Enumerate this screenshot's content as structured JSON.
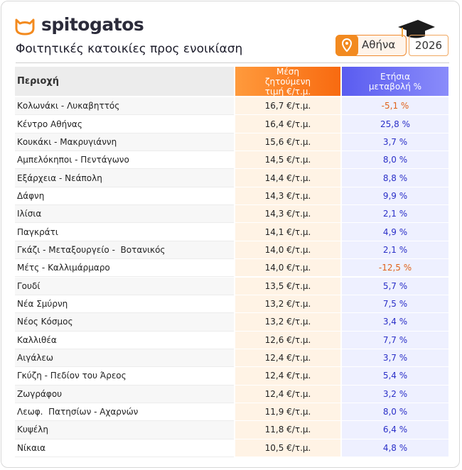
{
  "header": {
    "brand": "spitogatos",
    "title": "Φοιτητικές κατοικίες προς ενοικίαση",
    "location": "Αθήνα",
    "year": "2026"
  },
  "table": {
    "columns": [
      "Περιοχή",
      "Μέση ζητούμενη τιμή €/τ.μ.",
      "Ετήσια μεταβολή %"
    ],
    "rows": [
      [
        "Κολωνάκι - Λυκαβηττός",
        "16,7 €/τ.μ.",
        "-5,1 %"
      ],
      [
        "Κέντρο Αθήνας",
        "16,4 €/τ.μ.",
        "25,8 %"
      ],
      [
        "Κουκάκι - Μακρυγιάννη",
        "15,6 €/τ.μ.",
        "3,7 %"
      ],
      [
        "Αμπελόκηποι - Πεντάγωνο",
        "14,5 €/τ.μ.",
        "8,0 %"
      ],
      [
        "Εξάρχεια - Νεάπολη",
        "14,4 €/τ.μ.",
        "8,8 %"
      ],
      [
        "Δάφνη",
        "14,3 €/τ.μ.",
        "9,9 %"
      ],
      [
        "Ιλίσια",
        "14,3 €/τ.μ.",
        "2,1 %"
      ],
      [
        "Παγκράτι",
        "14,1 €/τ.μ.",
        "4,9 %"
      ],
      [
        "Γκάζι - Μεταξουργείο -  Βοτανικός",
        "14,0 €/τ.μ.",
        "2,1 %"
      ],
      [
        "Μέτς - Καλλιμάρμαρο",
        "14,0 €/τ.μ.",
        "-12,5 %"
      ],
      [
        "Γουδί",
        "13,5 €/τ.μ.",
        "5,7 %"
      ],
      [
        "Νέα Σμύρνη",
        "13,2 €/τ.μ.",
        "7,5 %"
      ],
      [
        "Νέος Κόσμος",
        "13,2 €/τ.μ.",
        "3,4 %"
      ],
      [
        "Καλλιθέα",
        "12,6 €/τ.μ.",
        "7,7 %"
      ],
      [
        "Αιγάλεω",
        "12,4 €/τ.μ.",
        "3,7 %"
      ],
      [
        "Γκύζη - Πεδίον του Άρεος",
        "12,4 €/τ.μ.",
        "5,4 %"
      ],
      [
        "Ζωγράφου",
        "12,4 €/τ.μ.",
        "3,2 %"
      ],
      [
        "Λεωφ.  Πατησίων - Αχαρνών",
        "11,9 €/τ.μ.",
        "8,0 %"
      ],
      [
        "Κυψέλη",
        "11,8 €/τ.μ.",
        "6,4 %"
      ],
      [
        "Νίκαια",
        "10,5 €/τ.μ.",
        "4,8 %"
      ]
    ]
  }
}
